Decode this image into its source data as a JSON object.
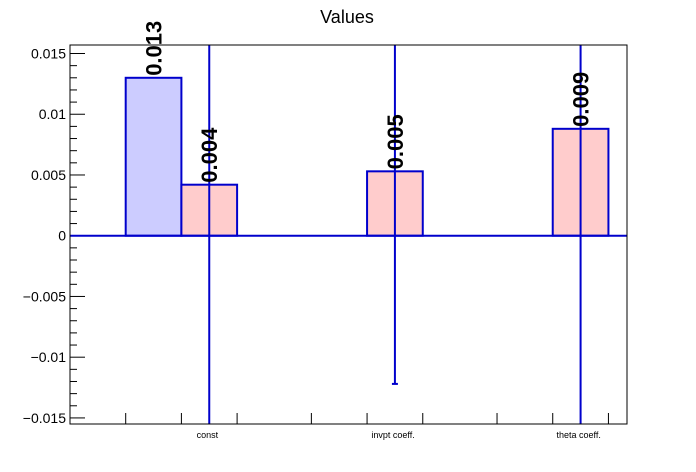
{
  "chart_data": {
    "type": "bar",
    "title": "Values",
    "xlabel": "",
    "ylabel": "",
    "ylim": [
      -0.0155,
      0.0157
    ],
    "y_ticks": [
      -0.015,
      -0.01,
      -0.005,
      0,
      0.005,
      0.01,
      0.015
    ],
    "y_tick_labels": [
      "−0.015",
      "−0.01",
      "−0.005",
      "0",
      "0.005",
      "0.01",
      "0.015"
    ],
    "categories": [
      "const",
      "invpt coeff.",
      "theta coeff."
    ],
    "grid": false,
    "legend": "none",
    "colors": {
      "series_a_fill": "#ccccff",
      "series_b_fill": "#ffcccc",
      "bar_stroke": "#0000cc",
      "error_bar": "#0000cc",
      "zero_line": "#0000cc",
      "axis": "#000000"
    },
    "series": [
      {
        "values": [
          0.013,
          null,
          null
        ],
        "labels": [
          "0.013",
          "",
          ""
        ],
        "errors_low": [
          null,
          null,
          null
        ],
        "errors_high": [
          null,
          null,
          null
        ]
      },
      {
        "values": [
          0.0042,
          0.0053,
          0.0088
        ],
        "labels": [
          "0.004",
          "0.005",
          "0.009"
        ],
        "errors_low": [
          -0.0155,
          -0.0122,
          -0.0155
        ],
        "errors_high": [
          0.0157,
          0.0157,
          0.0157
        ]
      }
    ]
  }
}
